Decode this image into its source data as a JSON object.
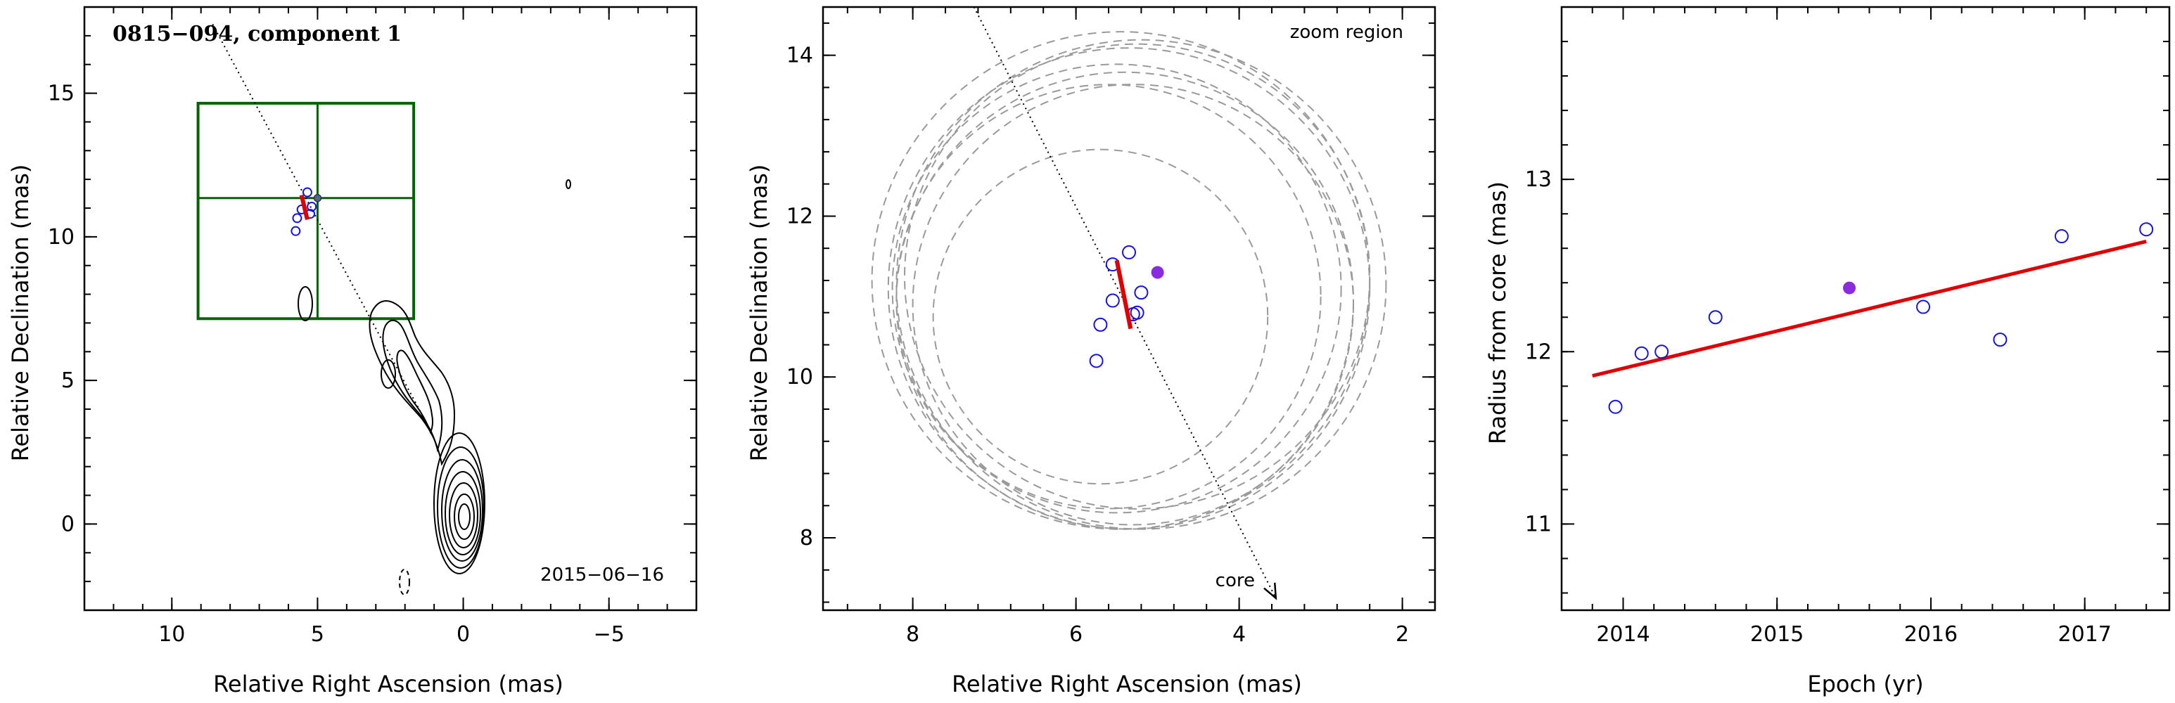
{
  "chart_data": [
    {
      "type": "contour",
      "title": "0815−094, component 1",
      "xlabel": "Relative Right Ascension (mas)",
      "ylabel": "Relative Declination (mas)",
      "annotation": "2015−06−16",
      "xlim": [
        13,
        -8
      ],
      "ylim": [
        -3,
        18
      ],
      "xticks": [
        10,
        5,
        0,
        -5
      ],
      "xtick_labels": [
        "10",
        "5",
        "0",
        "−5"
      ],
      "yticks": [
        0,
        5,
        10,
        15
      ],
      "ytick_labels": [
        "0",
        "5",
        "10",
        "15"
      ],
      "zoom_box": {
        "x": [
          9.1,
          1.7
        ],
        "y": [
          7.15,
          14.65
        ],
        "color": "#006400"
      },
      "trajectory_line": {
        "from": [
          8.6,
          17.4
        ],
        "to": [
          1.2,
          3.4
        ]
      },
      "component_points": [
        [
          5.75,
          10.2
        ],
        [
          5.7,
          10.65
        ],
        [
          5.55,
          10.95
        ],
        [
          5.35,
          11.55
        ],
        [
          5.2,
          11.05
        ],
        [
          5.25,
          10.8
        ]
      ],
      "current_point": [
        5.0,
        11.35
      ],
      "fit_segment": {
        "from": [
          5.55,
          11.45
        ],
        "to": [
          5.35,
          10.6
        ],
        "color": "#e00000"
      }
    },
    {
      "type": "scatter",
      "title": "",
      "annotation": "zoom region",
      "arrow_label": "core",
      "xlabel": "Relative Right Ascension (mas)",
      "ylabel": "Relative Declination (mas)",
      "xlim": [
        9.1,
        1.6
      ],
      "ylim": [
        7.1,
        14.6
      ],
      "xticks": [
        8,
        6,
        4,
        2
      ],
      "xtick_labels": [
        "8",
        "6",
        "4",
        "2"
      ],
      "yticks": [
        8,
        10,
        12,
        14
      ],
      "ytick_labels": [
        "8",
        "10",
        "12",
        "14"
      ],
      "epoch_points": [
        [
          5.75,
          10.2
        ],
        [
          5.7,
          10.65
        ],
        [
          5.55,
          10.95
        ],
        [
          5.55,
          11.4
        ],
        [
          5.35,
          11.55
        ],
        [
          5.2,
          11.05
        ],
        [
          5.25,
          10.8
        ],
        [
          5.3,
          10.78
        ]
      ],
      "current_point": [
        5.0,
        11.3
      ],
      "fit_segment": {
        "from": [
          5.5,
          11.45
        ],
        "to": [
          5.33,
          10.6
        ],
        "color": "#e00000"
      },
      "trajectory_line": {
        "from": [
          7.25,
          14.6
        ],
        "to": [
          3.55,
          7.25
        ]
      },
      "circles": [
        {
          "cx": 5.5,
          "cy": 11.1,
          "r": 2.75
        },
        {
          "cx": 5.35,
          "cy": 11.1,
          "r": 2.95
        },
        {
          "cx": 5.2,
          "cy": 11.15,
          "r": 3.0
        },
        {
          "cx": 5.4,
          "cy": 10.95,
          "r": 2.8
        },
        {
          "cx": 5.6,
          "cy": 11.0,
          "r": 2.6
        },
        {
          "cx": 5.25,
          "cy": 11.25,
          "r": 2.85
        },
        {
          "cx": 5.45,
          "cy": 11.2,
          "r": 3.05
        },
        {
          "cx": 5.3,
          "cy": 10.9,
          "r": 2.7
        },
        {
          "cx": 5.7,
          "cy": 10.75,
          "r": 2.05
        }
      ]
    },
    {
      "type": "scatter",
      "title": "",
      "xlabel": "Epoch (yr)",
      "ylabel": "Radius from core (mas)",
      "xlim": [
        2013.6,
        2017.55
      ],
      "ylim": [
        10.5,
        14
      ],
      "xticks": [
        2014,
        2015,
        2016,
        2017
      ],
      "xtick_labels": [
        "2014",
        "2015",
        "2016",
        "2017"
      ],
      "yticks": [
        11,
        12,
        13
      ],
      "ytick_labels": [
        "11",
        "12",
        "13"
      ],
      "x": [
        2013.95,
        2014.12,
        2014.25,
        2014.6,
        2015.95,
        2016.45,
        2016.85,
        2017.4
      ],
      "values": [
        11.68,
        11.99,
        12.0,
        12.2,
        12.26,
        12.07,
        12.67,
        12.71
      ],
      "current_point": [
        2015.47,
        12.37
      ],
      "fit_line": {
        "x": [
          2013.8,
          2017.4
        ],
        "y": [
          11.86,
          12.64
        ],
        "color": "#e00000"
      }
    }
  ]
}
